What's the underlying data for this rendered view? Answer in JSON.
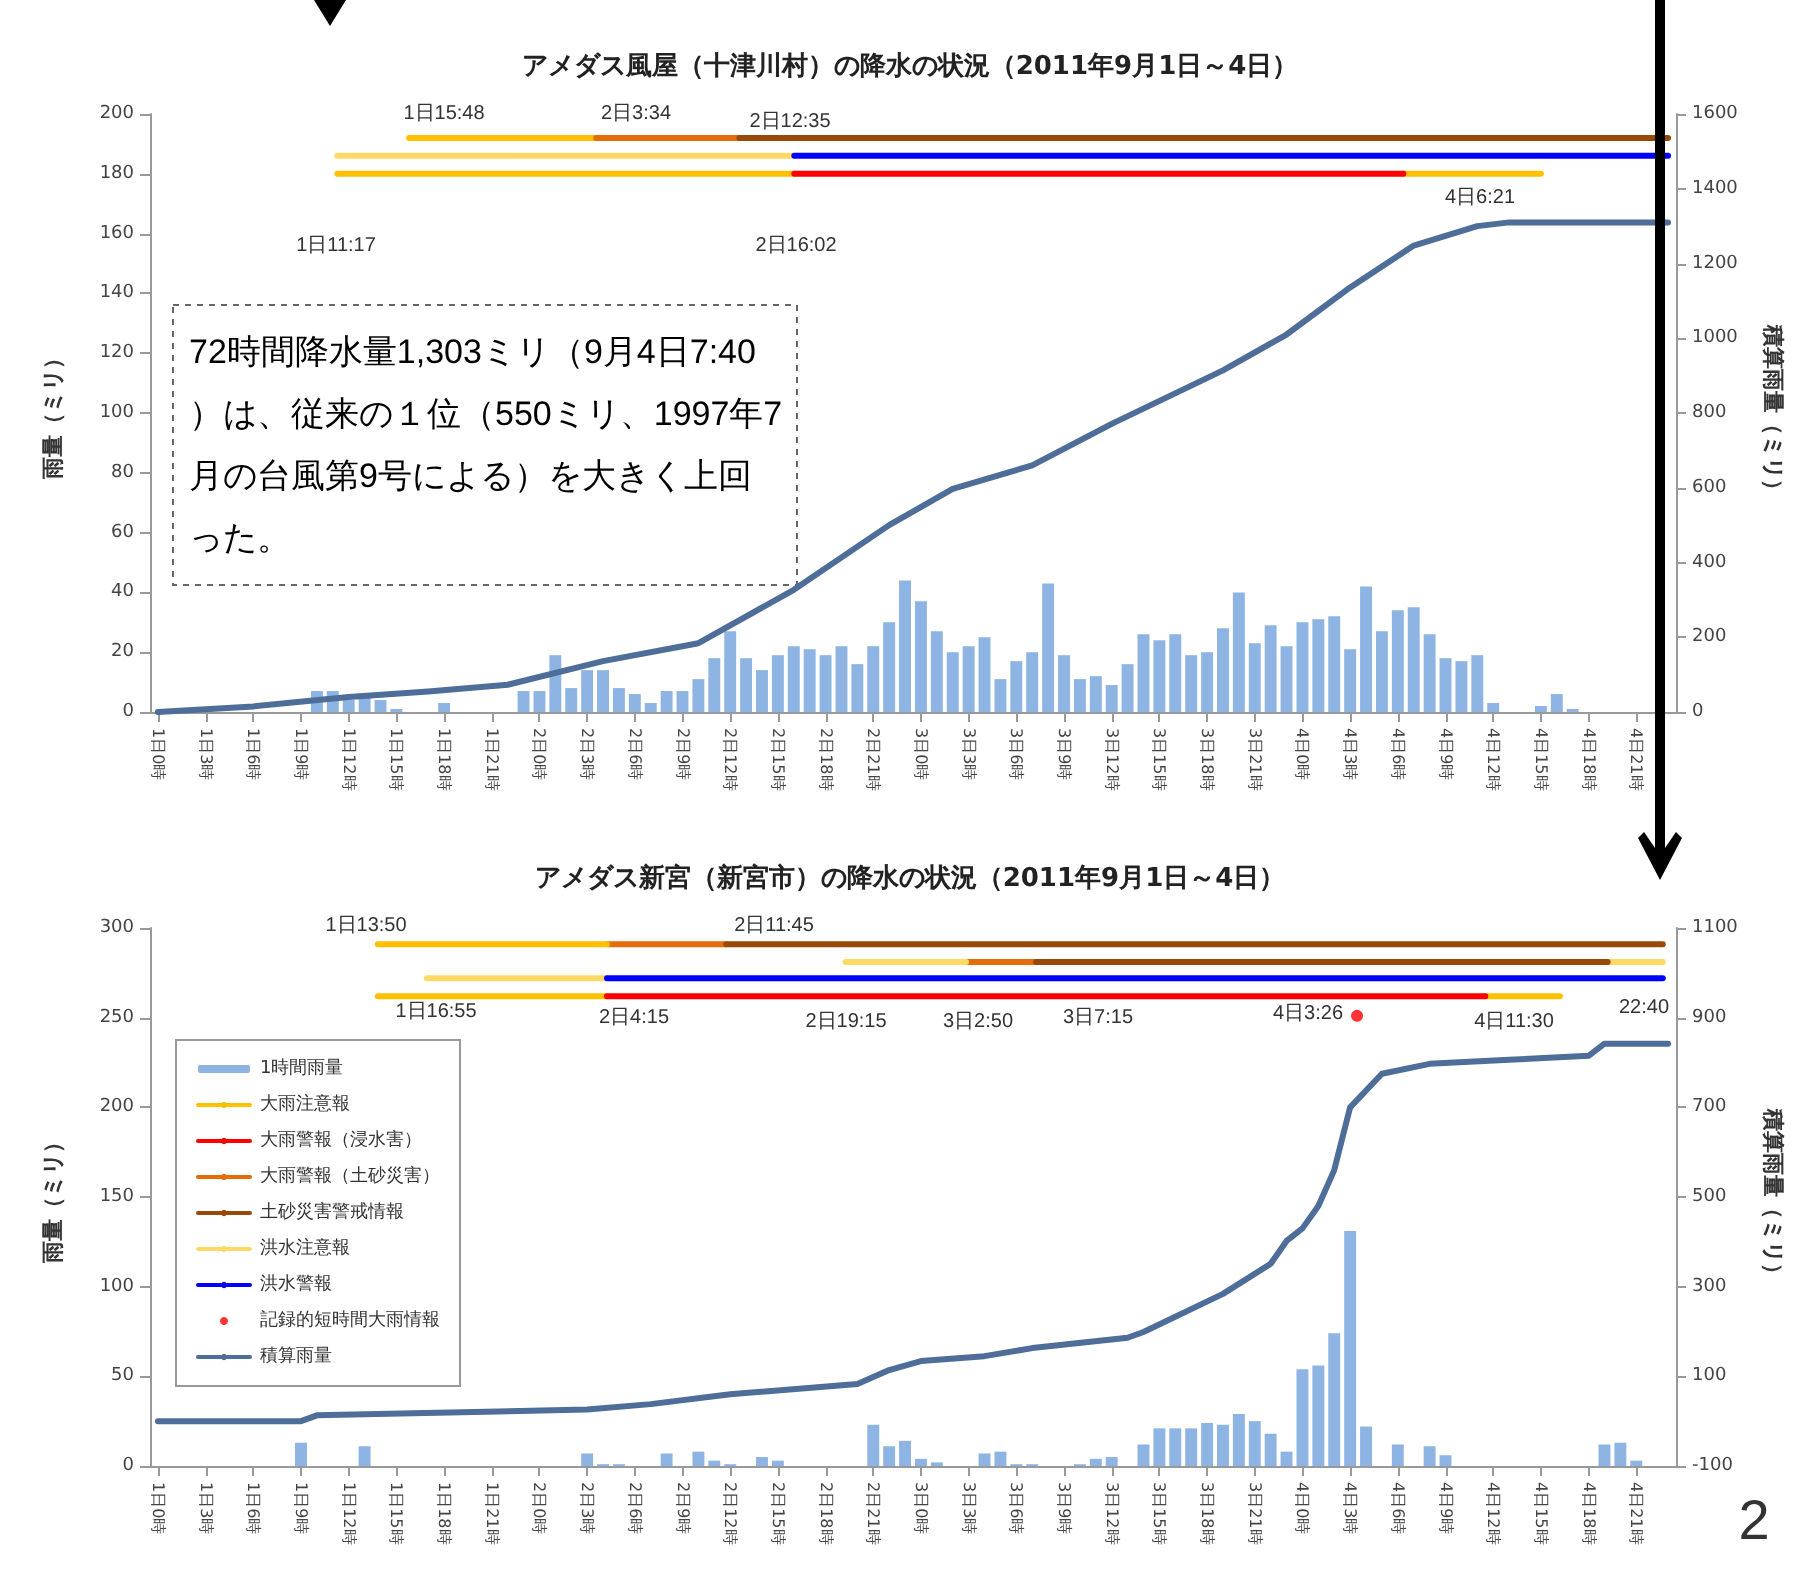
{
  "chart_data": [
    {
      "type": "bar",
      "title": "アメダス風屋（十津川村）の降水の状況（2011年9月1日～4日）",
      "ylabel": "雨量（ミリ）",
      "y2label": "積算雨量（ミリ）",
      "marker": "none",
      "line_style": "solid",
      "x": [
        "2011-09-01T00:00",
        "2011-09-01T01:00",
        "2011-09-01T02:00",
        "2011-09-01T03:00",
        "2011-09-01T04:00",
        "2011-09-01T05:00",
        "2011-09-01T06:00",
        "2011-09-01T07:00",
        "2011-09-01T08:00",
        "2011-09-01T09:00",
        "2011-09-01T10:00",
        "2011-09-01T11:00",
        "2011-09-01T12:00",
        "2011-09-01T13:00",
        "2011-09-01T14:00",
        "2011-09-01T15:00",
        "2011-09-01T16:00",
        "2011-09-01T17:00",
        "2011-09-01T18:00",
        "2011-09-01T19:00",
        "2011-09-01T20:00",
        "2011-09-01T21:00",
        "2011-09-01T22:00",
        "2011-09-01T23:00",
        "2011-09-02T00:00",
        "2011-09-02T01:00",
        "2011-09-02T02:00",
        "2011-09-02T03:00",
        "2011-09-02T04:00",
        "2011-09-02T05:00",
        "2011-09-02T06:00",
        "2011-09-02T07:00",
        "2011-09-02T08:00",
        "2011-09-02T09:00",
        "2011-09-02T10:00",
        "2011-09-02T11:00",
        "2011-09-02T12:00",
        "2011-09-02T13:00",
        "2011-09-02T14:00",
        "2011-09-02T15:00",
        "2011-09-02T16:00",
        "2011-09-02T17:00",
        "2011-09-02T18:00",
        "2011-09-02T19:00",
        "2011-09-02T20:00",
        "2011-09-02T21:00",
        "2011-09-02T22:00",
        "2011-09-02T23:00",
        "2011-09-03T00:00",
        "2011-09-03T01:00",
        "2011-09-03T02:00",
        "2011-09-03T03:00",
        "2011-09-03T04:00",
        "2011-09-03T05:00",
        "2011-09-03T06:00",
        "2011-09-03T07:00",
        "2011-09-03T08:00",
        "2011-09-03T09:00",
        "2011-09-03T10:00",
        "2011-09-03T11:00",
        "2011-09-03T12:00",
        "2011-09-03T13:00",
        "2011-09-03T14:00",
        "2011-09-03T15:00",
        "2011-09-03T16:00",
        "2011-09-03T17:00",
        "2011-09-03T18:00",
        "2011-09-03T19:00",
        "2011-09-03T20:00",
        "2011-09-03T21:00",
        "2011-09-03T22:00",
        "2011-09-03T23:00",
        "2011-09-04T00:00",
        "2011-09-04T01:00",
        "2011-09-04T02:00",
        "2011-09-04T03:00",
        "2011-09-04T04:00",
        "2011-09-04T05:00",
        "2011-09-04T06:00",
        "2011-09-04T07:00",
        "2011-09-04T08:00",
        "2011-09-04T09:00",
        "2011-09-04T10:00",
        "2011-09-04T11:00",
        "2011-09-04T12:00",
        "2011-09-04T13:00",
        "2011-09-04T14:00",
        "2011-09-04T15:00",
        "2011-09-04T16:00",
        "2011-09-04T17:00",
        "2011-09-04T18:00",
        "2011-09-04T19:00",
        "2011-09-04T20:00",
        "2011-09-04T21:00",
        "2011-09-04T22:00",
        "2011-09-04T23:00"
      ],
      "xlim": [
        "2011-08-31T23:30",
        "2011-09-04T23:30"
      ],
      "xticks": [
        {
          "value": "2011-09-01T00:00",
          "label": "1日0時"
        },
        {
          "value": "2011-09-01T03:00",
          "label": "1日3時"
        },
        {
          "value": "2011-09-01T06:00",
          "label": "1日6時"
        },
        {
          "value": "2011-09-01T09:00",
          "label": "1日9時"
        },
        {
          "value": "2011-09-01T12:00",
          "label": "1日12時"
        },
        {
          "value": "2011-09-01T15:00",
          "label": "1日15時"
        },
        {
          "value": "2011-09-01T18:00",
          "label": "1日18時"
        },
        {
          "value": "2011-09-01T21:00",
          "label": "1日21時"
        },
        {
          "value": "2011-09-02T00:00",
          "label": "2日0時"
        },
        {
          "value": "2011-09-02T03:00",
          "label": "2日3時"
        },
        {
          "value": "2011-09-02T06:00",
          "label": "2日6時"
        },
        {
          "value": "2011-09-02T09:00",
          "label": "2日9時"
        },
        {
          "value": "2011-09-02T12:00",
          "label": "2日12時"
        },
        {
          "value": "2011-09-02T15:00",
          "label": "2日15時"
        },
        {
          "value": "2011-09-02T18:00",
          "label": "2日18時"
        },
        {
          "value": "2011-09-02T21:00",
          "label": "2日21時"
        },
        {
          "value": "2011-09-03T00:00",
          "label": "3日0時"
        },
        {
          "value": "2011-09-03T03:00",
          "label": "3日3時"
        },
        {
          "value": "2011-09-03T06:00",
          "label": "3日6時"
        },
        {
          "value": "2011-09-03T09:00",
          "label": "3日9時"
        },
        {
          "value": "2011-09-03T12:00",
          "label": "3日12時"
        },
        {
          "value": "2011-09-03T15:00",
          "label": "3日15時"
        },
        {
          "value": "2011-09-03T18:00",
          "label": "3日18時"
        },
        {
          "value": "2011-09-03T21:00",
          "label": "3日21時"
        },
        {
          "value": "2011-09-04T00:00",
          "label": "4日0時"
        },
        {
          "value": "2011-09-04T03:00",
          "label": "4日3時"
        },
        {
          "value": "2011-09-04T06:00",
          "label": "4日6時"
        },
        {
          "value": "2011-09-04T09:00",
          "label": "4日9時"
        },
        {
          "value": "2011-09-04T12:00",
          "label": "4日12時"
        },
        {
          "value": "2011-09-04T15:00",
          "label": "4日15時"
        },
        {
          "value": "2011-09-04T18:00",
          "label": "4日18時"
        },
        {
          "value": "2011-09-04T21:00",
          "label": "4日21時"
        }
      ],
      "ylim": [
        0,
        200
      ],
      "yticks": [
        0,
        20,
        40,
        60,
        80,
        100,
        120,
        140,
        160,
        180,
        200
      ],
      "y2lim": [
        0,
        1600
      ],
      "y2ticks": [
        0,
        200,
        400,
        600,
        800,
        1000,
        1200,
        1400,
        1600
      ],
      "series": [
        {
          "color": "#8db4e2",
          "values": [
            0,
            0,
            0,
            0,
            0,
            0,
            0,
            0,
            0,
            0,
            7,
            7,
            4,
            5,
            4,
            1,
            0,
            0,
            3,
            0,
            0,
            0,
            0,
            7,
            7,
            19,
            8,
            14,
            14,
            8,
            6,
            3,
            7,
            7,
            11,
            18,
            27,
            18,
            14,
            19,
            22,
            21,
            19,
            22,
            16,
            22,
            30,
            44,
            37,
            27,
            20,
            22,
            25,
            11,
            17,
            20,
            43,
            19,
            11,
            12,
            9,
            16,
            26,
            24,
            26,
            19,
            20,
            28,
            40,
            23,
            29,
            22,
            30,
            31,
            32,
            21,
            42,
            27,
            34,
            35,
            26,
            18,
            17,
            19,
            3,
            0,
            0,
            2,
            6,
            1,
            0,
            0,
            0,
            0,
            0,
            0
          ]
        },
        {
          "type": "line",
          "color": "#ffc000",
          "x": [
            "2011-09-01T15:48",
            "2011-09-02T03:34",
            null,
            "2011-09-01T11:17",
            "2011-09-02T16:02",
            null,
            "2011-09-04T06:21",
            "2011-09-04T15:00"
          ],
          "values": [
            192,
            192,
            null,
            180,
            180,
            null,
            180,
            180
          ]
        },
        {
          "type": "line",
          "color": "#ff0000",
          "x": [
            "2011-09-02T16:02",
            "2011-09-04T06:21"
          ],
          "values": [
            180,
            180
          ]
        },
        {
          "type": "line",
          "color": "#e46c0a",
          "x": [
            "2011-09-02T03:34",
            "2011-09-02T12:35"
          ],
          "values": [
            192,
            192
          ]
        },
        {
          "type": "line",
          "color": "#984807",
          "x": [
            "2011-09-02T12:35",
            "2011-09-04T23:00"
          ],
          "values": [
            192,
            192
          ]
        },
        {
          "type": "line",
          "color": "#ffd966",
          "x": [
            "2011-09-01T11:17",
            "2011-09-02T16:02"
          ],
          "values": [
            186,
            186
          ]
        },
        {
          "type": "line",
          "color": "#0000ff",
          "x": [
            "2011-09-02T16:02",
            "2011-09-04T23:00"
          ],
          "values": [
            186,
            186
          ]
        },
        {
          "type": "line",
          "color": "#4f6d99",
          "axis": "y2",
          "x": [
            "2011-09-01T00:00",
            "2011-09-01T06:00",
            "2011-09-01T12:00",
            "2011-09-01T17:00",
            "2011-09-01T22:00",
            "2011-09-02T04:00",
            "2011-09-02T10:00",
            "2011-09-02T16:00",
            "2011-09-02T22:00",
            "2011-09-03T02:00",
            "2011-09-03T07:00",
            "2011-09-03T12:00",
            "2011-09-03T19:00",
            "2011-09-03T23:00",
            "2011-09-04T03:00",
            "2011-09-04T07:00",
            "2011-09-04T11:00",
            "2011-09-04T13:00",
            "2011-09-04T23:00"
          ],
          "values": [
            0,
            15,
            40,
            55,
            73,
            136,
            184,
            327,
            500,
            597,
            660,
            771,
            914,
            1010,
            1136,
            1248,
            1300,
            1310,
            1310
          ]
        }
      ],
      "annotations": [
        "1日15:48",
        "2日3:34",
        "2日12:35",
        "1日11:17",
        "2日16:02",
        "4日6:21",
        "72時間降水量1,303ミリ（9月4日7:40）は、従来の１位（550ミリ、1997年7月の台風第9号による）を大きく上回った。"
      ]
    },
    {
      "type": "bar",
      "title": "アメダス新宮（新宮市）の降水の状況（2011年9月1日～4日）",
      "ylabel": "雨量（ミリ）",
      "y2label": "積算雨量（ミリ）",
      "marker": "none",
      "line_style": "solid",
      "legend": "left",
      "x": [
        "2011-09-01T00:00",
        "2011-09-01T01:00",
        "2011-09-01T02:00",
        "2011-09-01T03:00",
        "2011-09-01T04:00",
        "2011-09-01T05:00",
        "2011-09-01T06:00",
        "2011-09-01T07:00",
        "2011-09-01T08:00",
        "2011-09-01T09:00",
        "2011-09-01T10:00",
        "2011-09-01T11:00",
        "2011-09-01T12:00",
        "2011-09-01T13:00",
        "2011-09-01T14:00",
        "2011-09-01T15:00",
        "2011-09-01T16:00",
        "2011-09-01T17:00",
        "2011-09-01T18:00",
        "2011-09-01T19:00",
        "2011-09-01T20:00",
        "2011-09-01T21:00",
        "2011-09-01T22:00",
        "2011-09-01T23:00",
        "2011-09-02T00:00",
        "2011-09-02T01:00",
        "2011-09-02T02:00",
        "2011-09-02T03:00",
        "2011-09-02T04:00",
        "2011-09-02T05:00",
        "2011-09-02T06:00",
        "2011-09-02T07:00",
        "2011-09-02T08:00",
        "2011-09-02T09:00",
        "2011-09-02T10:00",
        "2011-09-02T11:00",
        "2011-09-02T12:00",
        "2011-09-02T13:00",
        "2011-09-02T14:00",
        "2011-09-02T15:00",
        "2011-09-02T16:00",
        "2011-09-02T17:00",
        "2011-09-02T18:00",
        "2011-09-02T19:00",
        "2011-09-02T20:00",
        "2011-09-02T21:00",
        "2011-09-02T22:00",
        "2011-09-02T23:00",
        "2011-09-03T00:00",
        "2011-09-03T01:00",
        "2011-09-03T02:00",
        "2011-09-03T03:00",
        "2011-09-03T04:00",
        "2011-09-03T05:00",
        "2011-09-03T06:00",
        "2011-09-03T07:00",
        "2011-09-03T08:00",
        "2011-09-03T09:00",
        "2011-09-03T10:00",
        "2011-09-03T11:00",
        "2011-09-03T12:00",
        "2011-09-03T13:00",
        "2011-09-03T14:00",
        "2011-09-03T15:00",
        "2011-09-03T16:00",
        "2011-09-03T17:00",
        "2011-09-03T18:00",
        "2011-09-03T19:00",
        "2011-09-03T20:00",
        "2011-09-03T21:00",
        "2011-09-03T22:00",
        "2011-09-03T23:00",
        "2011-09-04T00:00",
        "2011-09-04T01:00",
        "2011-09-04T02:00",
        "2011-09-04T03:00",
        "2011-09-04T04:00",
        "2011-09-04T05:00",
        "2011-09-04T06:00",
        "2011-09-04T07:00",
        "2011-09-04T08:00",
        "2011-09-04T09:00",
        "2011-09-04T10:00",
        "2011-09-04T11:00",
        "2011-09-04T12:00",
        "2011-09-04T13:00",
        "2011-09-04T14:00",
        "2011-09-04T15:00",
        "2011-09-04T16:00",
        "2011-09-04T17:00",
        "2011-09-04T18:00",
        "2011-09-04T19:00",
        "2011-09-04T20:00",
        "2011-09-04T21:00",
        "2011-09-04T22:00",
        "2011-09-04T23:00"
      ],
      "xlim": [
        "2011-08-31T23:30",
        "2011-09-04T23:30"
      ],
      "xticks": [
        {
          "value": "2011-09-01T00:00",
          "label": "1日0時"
        },
        {
          "value": "2011-09-01T03:00",
          "label": "1日3時"
        },
        {
          "value": "2011-09-01T06:00",
          "label": "1日6時"
        },
        {
          "value": "2011-09-01T09:00",
          "label": "1日9時"
        },
        {
          "value": "2011-09-01T12:00",
          "label": "1日12時"
        },
        {
          "value": "2011-09-01T15:00",
          "label": "1日15時"
        },
        {
          "value": "2011-09-01T18:00",
          "label": "1日18時"
        },
        {
          "value": "2011-09-01T21:00",
          "label": "1日21時"
        },
        {
          "value": "2011-09-02T00:00",
          "label": "2日0時"
        },
        {
          "value": "2011-09-02T03:00",
          "label": "2日3時"
        },
        {
          "value": "2011-09-02T06:00",
          "label": "2日6時"
        },
        {
          "value": "2011-09-02T09:00",
          "label": "2日9時"
        },
        {
          "value": "2011-09-02T12:00",
          "label": "2日12時"
        },
        {
          "value": "2011-09-02T15:00",
          "label": "2日15時"
        },
        {
          "value": "2011-09-02T18:00",
          "label": "2日18時"
        },
        {
          "value": "2011-09-02T21:00",
          "label": "2日21時"
        },
        {
          "value": "2011-09-03T00:00",
          "label": "3日0時"
        },
        {
          "value": "2011-09-03T03:00",
          "label": "3日3時"
        },
        {
          "value": "2011-09-03T06:00",
          "label": "3日6時"
        },
        {
          "value": "2011-09-03T09:00",
          "label": "3日9時"
        },
        {
          "value": "2011-09-03T12:00",
          "label": "3日12時"
        },
        {
          "value": "2011-09-03T15:00",
          "label": "3日15時"
        },
        {
          "value": "2011-09-03T18:00",
          "label": "3日18時"
        },
        {
          "value": "2011-09-03T21:00",
          "label": "3日21時"
        },
        {
          "value": "2011-09-04T00:00",
          "label": "4日0時"
        },
        {
          "value": "2011-09-04T03:00",
          "label": "4日3時"
        },
        {
          "value": "2011-09-04T06:00",
          "label": "4日6時"
        },
        {
          "value": "2011-09-04T09:00",
          "label": "4日9時"
        },
        {
          "value": "2011-09-04T12:00",
          "label": "4日12時"
        },
        {
          "value": "2011-09-04T15:00",
          "label": "4日15時"
        },
        {
          "value": "2011-09-04T18:00",
          "label": "4日18時"
        },
        {
          "value": "2011-09-04T21:00",
          "label": "4日21時"
        }
      ],
      "ylim": [
        0,
        300
      ],
      "yticks": [
        0,
        50,
        100,
        150,
        200,
        250,
        300
      ],
      "y2lim": [
        -100,
        1100
      ],
      "y2ticks": [
        -100,
        100,
        300,
        500,
        700,
        900,
        1100
      ],
      "series": [
        {
          "name": "1時間雨量",
          "color": "#8db4e2",
          "values": [
            0,
            0,
            0,
            0,
            0,
            0,
            0,
            0,
            0,
            13,
            0,
            0,
            0,
            11,
            0,
            0,
            0,
            0,
            0,
            0,
            0,
            0,
            0,
            0,
            0,
            0,
            0,
            7,
            1,
            1,
            0,
            0,
            7,
            0,
            8,
            3,
            1,
            0,
            5,
            3,
            0,
            0,
            0,
            0,
            0,
            23,
            11,
            14,
            4,
            2,
            0,
            0,
            7,
            8,
            1,
            1,
            0,
            0,
            1,
            4,
            5,
            0,
            12,
            21,
            21,
            21,
            24,
            23,
            29,
            25,
            18,
            8,
            54,
            56,
            74,
            131,
            22,
            0,
            12,
            0,
            11,
            6,
            0,
            0,
            0,
            0,
            0,
            0,
            0,
            0,
            0,
            12,
            13,
            3,
            0,
            0
          ]
        },
        {
          "type": "line",
          "name": "大雨注意報",
          "color": "#ffc000",
          "x": [
            "2011-09-01T13:50",
            "2011-09-02T04:15",
            null,
            "2011-09-04T11:30",
            "2011-09-04T16:12"
          ],
          "values": [
            262,
            262,
            null,
            262,
            262
          ]
        },
        {
          "type": "line",
          "name": "大雨警報（浸水害）",
          "color": "#ff0000",
          "x": [
            "2011-09-02T04:15",
            "2011-09-04T11:30"
          ],
          "values": [
            262,
            262
          ]
        },
        {
          "type": "line",
          "name": "大雨警報（土砂災害）",
          "color": "#e46c0a",
          "x": [
            "2011-09-02T04:15",
            "2011-09-02T11:45",
            null,
            "2011-09-03T02:50",
            "2011-09-03T07:15"
          ],
          "values": [
            291,
            291,
            null,
            281,
            281
          ]
        },
        {
          "type": "line",
          "name": "土砂災害警戒情報",
          "color": "#984807",
          "x": [
            "2011-09-02T11:45",
            "2011-09-04T22:40"
          ],
          "values": [
            291,
            291
          ]
        },
        {
          "type": "line",
          "name": "洪水注意報",
          "color": "#ffd966",
          "x": [
            "2011-09-01T16:55",
            "2011-09-02T04:15",
            null,
            "2011-09-02T19:15",
            "2011-09-03T02:50",
            null,
            "2011-09-04T19:12",
            "2011-09-04T22:40"
          ],
          "values": [
            272,
            272,
            null,
            281,
            281,
            null,
            281,
            281
          ]
        },
        {
          "type": "line",
          "name": "洪水警報",
          "color": "#0000ff",
          "x": [
            "2011-09-02T04:15",
            "2011-09-04T22:40"
          ],
          "values": [
            272,
            272
          ]
        },
        {
          "type": "line",
          "color": "#ffc000",
          "x": [
            "2011-09-01T13:50",
            "2011-09-02T04:15"
          ],
          "values": [
            291,
            291
          ]
        },
        {
          "type": "line",
          "color": "#984807",
          "x": [
            "2011-09-03T07:15",
            "2011-09-04T19:12"
          ],
          "values": [
            281,
            281
          ]
        },
        {
          "type": "scatter",
          "name": "記録的短時間大雨情報",
          "color": "#ff0000",
          "marker": "circle",
          "x": [
            "2011-09-04T03:26"
          ],
          "values": [
            251
          ]
        },
        {
          "type": "line",
          "name": "積算雨量",
          "color": "#4f6d99",
          "axis": "y2",
          "x": [
            "2011-09-01T00:00",
            "2011-09-01T09:00",
            "2011-09-01T10:00",
            "2011-09-02T03:00",
            "2011-09-02T07:00",
            "2011-09-02T12:00",
            "2011-09-02T20:00",
            "2011-09-02T22:00",
            "2011-09-03T00:00",
            "2011-09-03T04:00",
            "2011-09-03T07:00",
            "2011-09-03T13:00",
            "2011-09-03T14:00",
            "2011-09-03T19:00",
            "2011-09-03T22:00",
            "2011-09-03T23:00",
            "2011-09-04T00:00",
            "2011-09-04T01:00",
            "2011-09-04T02:00",
            "2011-09-04T03:00",
            "2011-09-04T05:00",
            "2011-09-04T08:00",
            "2011-09-04T13:00",
            "2011-09-04T18:00",
            "2011-09-04T19:00",
            "2011-09-04T23:00"
          ],
          "values": [
            0,
            0,
            13,
            26,
            38,
            60,
            83,
            114,
            134,
            145,
            163,
            186,
            199,
            284,
            351,
            402,
            430,
            480,
            560,
            700,
            775,
            797,
            806,
            815,
            842,
            842
          ]
        }
      ],
      "annotations": [
        "1日13:50",
        "2日11:45",
        "1日16:55",
        "2日4:15",
        "2日19:15",
        "3日2:50",
        "3日7:15",
        "4日3:26",
        "4日11:30",
        "22:40",
        "2"
      ]
    }
  ]
}
